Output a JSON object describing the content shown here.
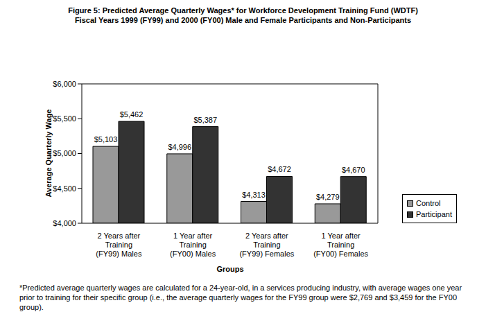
{
  "chart_data": {
    "type": "bar",
    "title": "Figure 5:  Predicted Average Quarterly Wages* for Workforce Development Training Fund (WDTF)",
    "subtitle": "Fiscal Years 1999 (FY99) and 2000 (FY00) Male and Female Participants and Non-Participants",
    "x_label": "Groups",
    "y_label": "Average Quarterly Wage",
    "annotation": "*Predicted average quarterly wages are calculated for a 24-year-old, in a services producing industry, with average wages one year prior to training for their specific group (i.e., the average quarterly wages for the FY99 group were $2,769 and $3,459 for the FY00 group).",
    "categories": [
      "2 Years after Training (FY99) Males",
      "1 Year after Training (FY00) Males",
      "2 Years after Training (FY99) Females",
      "1 Year after Training (FY00) Females"
    ],
    "series": [
      {
        "name": "Control",
        "color": "#999999",
        "values": [
          5103,
          4996,
          4313,
          4279
        ],
        "value_labels": [
          "$5,103",
          "$4,996",
          "$4,313",
          "$4,279"
        ]
      },
      {
        "name": "Participant",
        "color": "#333333",
        "values": [
          5462,
          5387,
          4672,
          4670
        ],
        "value_labels": [
          "$5,462",
          "$5,387",
          "$4,672",
          "$4,670"
        ]
      }
    ],
    "ylim": [
      4000,
      6000
    ],
    "yticks": [
      {
        "value": 4000,
        "label": "$4,000"
      },
      {
        "value": 4500,
        "label": "$4,500"
      },
      {
        "value": 5000,
        "label": "$5,000"
      },
      {
        "value": 5500,
        "label": "$5,500"
      },
      {
        "value": 6000,
        "label": "$6,000"
      }
    ],
    "grid": false,
    "legend": "right",
    "data_labels": true
  }
}
